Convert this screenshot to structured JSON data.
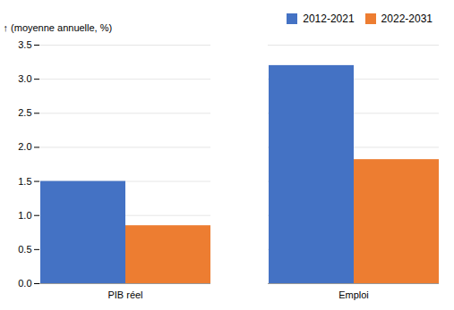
{
  "chart_data": {
    "type": "bar",
    "ylabel": "(moyenne annuelle, %)",
    "categories": [
      "PIB réel",
      "Emploi"
    ],
    "series": [
      {
        "name": "2012-2021",
        "color": "#4472C4",
        "values": [
          1.5,
          3.2
        ]
      },
      {
        "name": "2022-2031",
        "color": "#ED7D31",
        "values": [
          0.85,
          1.82
        ]
      }
    ],
    "ylim": [
      0,
      3.5
    ],
    "yticks": [
      {
        "value": 0,
        "label": "0.0"
      },
      0.5,
      {
        "value": 1,
        "label": "1.0"
      },
      1.5,
      {
        "value": 2,
        "label": "2.0"
      },
      2.5,
      {
        "value": 3,
        "label": "3.0"
      },
      3.5
    ],
    "grid": true,
    "legend": "upper right"
  }
}
